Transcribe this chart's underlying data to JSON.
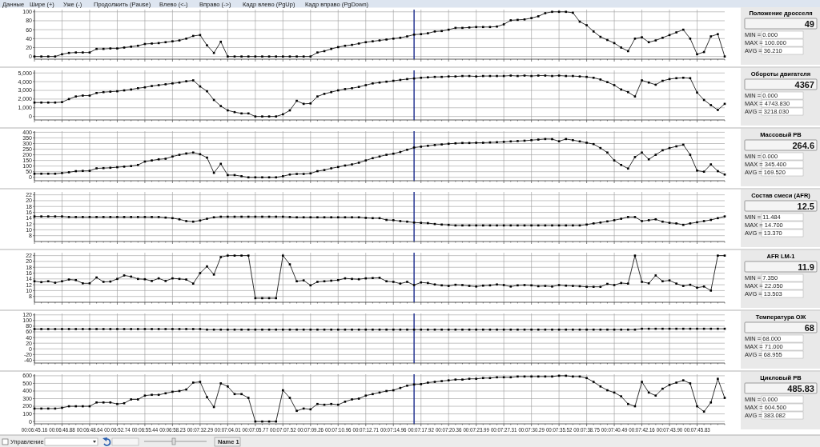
{
  "chart_data": [
    {
      "type": "line",
      "legend": "right",
      "marker": "square",
      "grid": true,
      "ylim": [
        -6,
        105
      ],
      "yticks": [
        0,
        20,
        40,
        60,
        80,
        100
      ],
      "categories": [
        null,
        null,
        null,
        null,
        null,
        null,
        null,
        null,
        null,
        null,
        null,
        null,
        null,
        null,
        null,
        null,
        null,
        null,
        null,
        null,
        null,
        null,
        null,
        null,
        null,
        null,
        null,
        null,
        null,
        null,
        null,
        null,
        null,
        null,
        null,
        null,
        null,
        null,
        null,
        null,
        null,
        null,
        null,
        null,
        null,
        null,
        null,
        null,
        null,
        null,
        null,
        null,
        null,
        null,
        null,
        null,
        null,
        null,
        null,
        null,
        null,
        null,
        null,
        null,
        null,
        null,
        null,
        null,
        null,
        null,
        null,
        null,
        null,
        null,
        null,
        null,
        null,
        null,
        null,
        null,
        null,
        null,
        null,
        null,
        null,
        null,
        null,
        null,
        null,
        null,
        null,
        null,
        null,
        null,
        null,
        null,
        null,
        null,
        null,
        null,
        null
      ],
      "series": [
        {
          "name": "Положение дросселя",
          "color": "#000000",
          "values": [
            0,
            0,
            0,
            0,
            5,
            8,
            9,
            9,
            9,
            17,
            17,
            18,
            18,
            20,
            22,
            24,
            28,
            29,
            30,
            32,
            34,
            36,
            40,
            46,
            48,
            25,
            8,
            33,
            0,
            0,
            0,
            0,
            0,
            0,
            0,
            0,
            0,
            0,
            0,
            0,
            0,
            9,
            12,
            17,
            21,
            24,
            26,
            29,
            32,
            34,
            36,
            38,
            40,
            42,
            45,
            49,
            50,
            52,
            56,
            57,
            60,
            64,
            64,
            65,
            66,
            66,
            66,
            67,
            72,
            81,
            82,
            83,
            86,
            90,
            97,
            100,
            100,
            100,
            98,
            78,
            70,
            56,
            44,
            37,
            30,
            20,
            12,
            40,
            43,
            32,
            36,
            42,
            48,
            54,
            60,
            40,
            5,
            10,
            45,
            50,
            0
          ]
        }
      ],
      "annotations": [
        "49",
        "MIN = 0.000",
        "MAX = 100.000",
        "AVG = 36.210",
        "Данные",
        "Шире (+)",
        "Уже (-)",
        "Продолжить (Pause)",
        "Влево (<-)",
        "Вправо (->)",
        "Кадр влево (PgUp)",
        "Кадр вправо (PgDown)"
      ]
    },
    {
      "type": "line",
      "legend": "right",
      "marker": "square",
      "grid": true,
      "ylim": [
        -400,
        5300
      ],
      "yticks": [
        0,
        {
          "value": 1000,
          "label": "1,000"
        },
        {
          "value": 2000,
          "label": "2,000"
        },
        {
          "value": 3000,
          "label": "3,000"
        },
        {
          "value": 4000,
          "label": "4,000"
        },
        {
          "value": 5000,
          "label": "5,000"
        }
      ],
      "categories": [
        null,
        null,
        null,
        null,
        null,
        null,
        null,
        null,
        null,
        null,
        null,
        null,
        null,
        null,
        null,
        null,
        null,
        null,
        null,
        null,
        null,
        null,
        null,
        null,
        null,
        null,
        null,
        null,
        null,
        null,
        null,
        null,
        null,
        null,
        null,
        null,
        null,
        null,
        null,
        null,
        null,
        null,
        null,
        null,
        null,
        null,
        null,
        null,
        null,
        null,
        null,
        null,
        null,
        null,
        null,
        null,
        null,
        null,
        null,
        null,
        null,
        null,
        null,
        null,
        null,
        null,
        null,
        null,
        null,
        null,
        null,
        null,
        null,
        null,
        null,
        null,
        null,
        null,
        null,
        null,
        null,
        null,
        null,
        null,
        null,
        null,
        null,
        null,
        null,
        null,
        null,
        null,
        null,
        null,
        null,
        null,
        null,
        null,
        null,
        null,
        null
      ],
      "series": [
        {
          "name": "Обороты двигателя",
          "color": "#000000",
          "values": [
            1600,
            1600,
            1600,
            1600,
            1650,
            2000,
            2300,
            2400,
            2400,
            2700,
            2800,
            2850,
            2900,
            3000,
            3100,
            3250,
            3350,
            3500,
            3600,
            3700,
            3800,
            3900,
            4050,
            4150,
            3450,
            2900,
            1900,
            1200,
            700,
            500,
            350,
            350,
            0,
            0,
            0,
            0,
            250,
            700,
            1800,
            1450,
            1500,
            2300,
            2600,
            2800,
            3000,
            3150,
            3250,
            3400,
            3600,
            3800,
            3900,
            4000,
            4100,
            4200,
            4300,
            4367,
            4450,
            4500,
            4550,
            4550,
            4600,
            4600,
            4650,
            4650,
            4600,
            4650,
            4650,
            4650,
            4650,
            4700,
            4650,
            4700,
            4650,
            4700,
            4700,
            4650,
            4700,
            4650,
            4650,
            4600,
            4550,
            4450,
            4250,
            3950,
            3600,
            3100,
            2800,
            2300,
            4150,
            3900,
            3650,
            4100,
            4300,
            4400,
            4450,
            4400,
            2750,
            1900,
            1300,
            750,
            1450
          ]
        }
      ],
      "annotations": [
        "4367",
        "MIN = 0.000",
        "MAX = 4743.830",
        "AVG = 3218.030"
      ]
    },
    {
      "type": "line",
      "legend": "right",
      "marker": "square",
      "grid": true,
      "ylim": [
        -30,
        410
      ],
      "yticks": [
        0,
        50,
        100,
        150,
        200,
        250,
        300,
        350,
        400
      ],
      "categories": [
        null,
        null,
        null,
        null,
        null,
        null,
        null,
        null,
        null,
        null,
        null,
        null,
        null,
        null,
        null,
        null,
        null,
        null,
        null,
        null,
        null,
        null,
        null,
        null,
        null,
        null,
        null,
        null,
        null,
        null,
        null,
        null,
        null,
        null,
        null,
        null,
        null,
        null,
        null,
        null,
        null,
        null,
        null,
        null,
        null,
        null,
        null,
        null,
        null,
        null,
        null,
        null,
        null,
        null,
        null,
        null,
        null,
        null,
        null,
        null,
        null,
        null,
        null,
        null,
        null,
        null,
        null,
        null,
        null,
        null,
        null,
        null,
        null,
        null,
        null,
        null,
        null,
        null,
        null,
        null,
        null,
        null,
        null,
        null,
        null,
        null,
        null,
        null,
        null,
        null,
        null,
        null,
        null,
        null,
        null,
        null,
        null,
        null,
        null,
        null,
        null
      ],
      "series": [
        {
          "name": "Массовый РВ",
          "color": "#000000",
          "values": [
            32,
            32,
            32,
            32,
            38,
            45,
            55,
            57,
            58,
            80,
            82,
            85,
            90,
            95,
            100,
            110,
            140,
            150,
            160,
            165,
            185,
            200,
            212,
            220,
            205,
            175,
            40,
            120,
            20,
            20,
            10,
            0,
            0,
            0,
            0,
            0,
            10,
            25,
            30,
            30,
            35,
            55,
            65,
            80,
            92,
            105,
            115,
            130,
            150,
            170,
            185,
            200,
            210,
            225,
            245,
            264.6,
            272,
            280,
            287,
            292,
            298,
            302,
            305,
            305,
            307,
            307,
            310,
            312,
            315,
            319,
            322,
            325,
            330,
            335,
            340,
            339,
            320,
            340,
            330,
            319,
            307,
            295,
            260,
            220,
            150,
            110,
            78,
            180,
            220,
            160,
            200,
            240,
            260,
            275,
            290,
            200,
            60,
            50,
            115,
            55,
            25
          ]
        }
      ],
      "annotations": [
        "264.6",
        "MIN = 0.000",
        "MAX = 345.400",
        "AVG = 169.520"
      ]
    },
    {
      "type": "line",
      "legend": "right",
      "marker": "square",
      "grid": true,
      "ylim": [
        6,
        23
      ],
      "yticks": [
        8,
        10,
        12,
        14,
        16,
        18,
        20,
        22
      ],
      "categories": [
        null,
        null,
        null,
        null,
        null,
        null,
        null,
        null,
        null,
        null,
        null,
        null,
        null,
        null,
        null,
        null,
        null,
        null,
        null,
        null,
        null,
        null,
        null,
        null,
        null,
        null,
        null,
        null,
        null,
        null,
        null,
        null,
        null,
        null,
        null,
        null,
        null,
        null,
        null,
        null,
        null,
        null,
        null,
        null,
        null,
        null,
        null,
        null,
        null,
        null,
        null,
        null,
        null,
        null,
        null,
        null,
        null,
        null,
        null,
        null,
        null,
        null,
        null,
        null,
        null,
        null,
        null,
        null,
        null,
        null,
        null,
        null,
        null,
        null,
        null,
        null,
        null,
        null,
        null,
        null,
        null,
        null,
        null,
        null,
        null,
        null,
        null,
        null,
        null,
        null,
        null,
        null,
        null,
        null,
        null,
        null,
        null,
        null,
        null,
        null,
        null
      ],
      "series": [
        {
          "name": "Состав смеси (AFR)",
          "color": "#000000",
          "values": [
            14.6,
            14.6,
            14.6,
            14.6,
            14.6,
            14.4,
            14.4,
            14.4,
            14.4,
            14.4,
            14.4,
            14.4,
            14.4,
            14.4,
            14.4,
            14.4,
            14.4,
            14.4,
            14.4,
            14.2,
            14.0,
            13.6,
            13.0,
            12.8,
            13.2,
            13.8,
            14.3,
            14.5,
            14.5,
            14.5,
            14.5,
            14.5,
            14.5,
            14.5,
            14.5,
            14.5,
            14.5,
            14.4,
            14.3,
            14.3,
            14.3,
            14.3,
            14.3,
            14.3,
            14.3,
            14.3,
            14.3,
            14.3,
            14.1,
            14.0,
            14.0,
            13.4,
            13.3,
            13.0,
            12.8,
            12.5,
            12.4,
            12.3,
            12.0,
            11.8,
            11.7,
            11.5,
            11.5,
            11.5,
            11.5,
            11.5,
            11.5,
            11.5,
            11.5,
            11.5,
            11.5,
            11.5,
            11.5,
            11.5,
            11.5,
            11.5,
            11.5,
            11.5,
            11.5,
            11.5,
            11.8,
            12.2,
            12.5,
            12.9,
            13.3,
            13.8,
            14.4,
            14.4,
            13.0,
            13.3,
            13.6,
            12.8,
            12.4,
            12.2,
            11.7,
            12.2,
            12.6,
            13.0,
            13.4,
            14.0,
            14.6
          ]
        }
      ],
      "annotations": [
        "12.5",
        "MIN = 11.484",
        "MAX = 14.700",
        "AVG = 13.370"
      ]
    },
    {
      "type": "line",
      "legend": "right",
      "marker": "square",
      "grid": true,
      "ylim": [
        6,
        23
      ],
      "yticks": [
        8,
        10,
        12,
        14,
        16,
        18,
        20,
        22
      ],
      "categories": [
        null,
        null,
        null,
        null,
        null,
        null,
        null,
        null,
        null,
        null,
        null,
        null,
        null,
        null,
        null,
        null,
        null,
        null,
        null,
        null,
        null,
        null,
        null,
        null,
        null,
        null,
        null,
        null,
        null,
        null,
        null,
        null,
        null,
        null,
        null,
        null,
        null,
        null,
        null,
        null,
        null,
        null,
        null,
        null,
        null,
        null,
        null,
        null,
        null,
        null,
        null,
        null,
        null,
        null,
        null,
        null,
        null,
        null,
        null,
        null,
        null,
        null,
        null,
        null,
        null,
        null,
        null,
        null,
        null,
        null,
        null,
        null,
        null,
        null,
        null,
        null,
        null,
        null,
        null,
        null,
        null,
        null,
        null,
        null,
        null,
        null,
        null,
        null,
        null,
        null,
        null,
        null,
        null,
        null,
        null,
        null,
        null,
        null,
        null,
        null,
        null
      ],
      "series": [
        {
          "name": "AFR LM-1",
          "color": "#000000",
          "values": [
            13.2,
            12.9,
            13.2,
            12.7,
            13.2,
            13.8,
            13.6,
            12.5,
            12.5,
            14.5,
            13.0,
            13.1,
            14.0,
            15.2,
            14.8,
            14.0,
            13.9,
            13.3,
            14.2,
            13.3,
            14.2,
            14.0,
            13.8,
            12.4,
            16.0,
            18.3,
            15.5,
            21.5,
            22,
            22,
            22,
            22,
            7.4,
            7.4,
            7.4,
            7.4,
            22,
            19.0,
            13.2,
            13.5,
            11.8,
            13.0,
            13.2,
            13.4,
            13.6,
            14.2,
            14.0,
            13.9,
            14.2,
            14.3,
            14.4,
            13.2,
            13.0,
            12.4,
            13.0,
            11.9,
            12.8,
            12.6,
            12.1,
            11.8,
            11.6,
            12.0,
            11.9,
            11.6,
            11.4,
            11.7,
            11.8,
            12.1,
            11.9,
            11.4,
            11.8,
            11.9,
            11.8,
            11.5,
            11.6,
            11.4,
            11.9,
            11.7,
            11.6,
            11.5,
            11.3,
            11.3,
            11.3,
            12.3,
            11.9,
            12.6,
            12.4,
            22,
            13.0,
            12.5,
            15.2,
            13.2,
            13.5,
            12.4,
            11.6,
            12.0,
            11.0,
            11.4,
            10.0,
            22,
            22
          ]
        }
      ],
      "annotations": [
        "11.9",
        "MIN = 7.350",
        "MAX = 22.050",
        "AVG = 13.503"
      ]
    },
    {
      "type": "line",
      "legend": "right",
      "marker": "square",
      "grid": true,
      "ylim": [
        -50,
        125
      ],
      "yticks": [
        -40,
        -20,
        0,
        20,
        40,
        60,
        80,
        100,
        120
      ],
      "categories": [
        null,
        null,
        null,
        null,
        null,
        null,
        null,
        null,
        null,
        null,
        null,
        null,
        null,
        null,
        null,
        null,
        null,
        null,
        null,
        null,
        null,
        null,
        null,
        null,
        null,
        null,
        null,
        null,
        null,
        null,
        null,
        null,
        null,
        null,
        null,
        null,
        null,
        null,
        null,
        null,
        null,
        null,
        null,
        null,
        null,
        null,
        null,
        null,
        null,
        null,
        null,
        null,
        null,
        null,
        null,
        null,
        null,
        null,
        null,
        null,
        null,
        null,
        null,
        null,
        null,
        null,
        null,
        null,
        null,
        null,
        null,
        null,
        null,
        null,
        null,
        null,
        null,
        null,
        null,
        null,
        null,
        null,
        null,
        null,
        null,
        null,
        null,
        null,
        null,
        null,
        null,
        null,
        null,
        null,
        null,
        null,
        null,
        null,
        null,
        null,
        null
      ],
      "series": [
        {
          "name": "Температура ОЖ",
          "color": "#000000",
          "values": [
            70,
            70,
            70,
            70,
            70,
            70,
            70,
            70,
            70,
            70,
            70,
            70,
            70,
            70,
            70,
            70,
            70,
            70,
            70,
            70,
            70,
            70,
            70,
            70,
            70,
            68,
            68,
            68,
            68,
            68,
            68,
            68,
            68,
            68,
            68,
            68,
            68,
            68,
            68,
            68,
            68,
            68,
            68,
            68,
            68,
            68,
            68,
            68,
            68,
            68,
            68,
            68,
            68,
            68,
            68,
            68,
            68,
            68,
            68,
            68,
            68,
            68,
            68,
            68,
            68,
            68,
            68,
            68,
            68,
            68,
            68,
            68,
            68,
            68,
            68,
            68,
            68,
            68,
            68,
            68,
            68,
            68,
            68,
            68,
            68,
            68,
            68,
            68,
            71,
            71,
            71,
            71,
            71,
            71,
            71,
            71,
            71,
            71,
            71,
            71,
            71
          ]
        }
      ],
      "annotations": [
        "68",
        "MIN = 68.000",
        "MAX = 71.000",
        "AVG = 68.955"
      ]
    },
    {
      "type": "line",
      "legend": "right",
      "marker": "square",
      "grid": true,
      "ylim": [
        -30,
        620
      ],
      "yticks": [
        0,
        100,
        200,
        300,
        400,
        500,
        600
      ],
      "categories": [
        "00:06:45.16",
        null,
        null,
        null,
        "00:06:46.88",
        null,
        null,
        null,
        "00:06:48.64",
        null,
        null,
        null,
        "00:06:52.74",
        null,
        null,
        null,
        "00:06:55.44",
        null,
        null,
        null,
        "00:06:58.23",
        null,
        null,
        null,
        "00:07:32.29",
        null,
        null,
        null,
        "00:07:04.01",
        null,
        null,
        null,
        "00:07:05.77",
        null,
        null,
        null,
        "00:07:07.52",
        null,
        null,
        null,
        "00:07:09.26",
        null,
        null,
        null,
        "00:07:10.96",
        null,
        null,
        null,
        "00:07:12.71",
        null,
        null,
        null,
        "00:07:14.96",
        null,
        null,
        null,
        "00:07:17.92",
        null,
        null,
        null,
        "00:07:20.36",
        null,
        null,
        null,
        "00:07:23.99",
        null,
        null,
        null,
        "00:07:27.31",
        null,
        null,
        null,
        "00:07:30.29",
        null,
        null,
        null,
        "00:07:35.52",
        null,
        null,
        null,
        "00:07:38.75",
        null,
        null,
        null,
        "00:07:40.49",
        null,
        null,
        null,
        "00:07:42.16",
        null,
        null,
        null,
        "00:07:43.90",
        null,
        null,
        null,
        "00:07:45.83",
        null,
        null,
        null,
        null
      ],
      "series": [
        {
          "name": "Цикловый РВ",
          "color": "#000000",
          "values": [
            170,
            170,
            170,
            170,
            180,
            200,
            200,
            200,
            200,
            250,
            250,
            250,
            230,
            240,
            290,
            290,
            340,
            350,
            350,
            370,
            390,
            400,
            420,
            510,
            520,
            320,
            190,
            500,
            460,
            360,
            360,
            310,
            0,
            0,
            0,
            0,
            410,
            310,
            140,
            170,
            160,
            230,
            220,
            230,
            220,
            260,
            290,
            300,
            340,
            360,
            380,
            400,
            410,
            440,
            470,
            485.83,
            490,
            510,
            520,
            530,
            540,
            550,
            550,
            560,
            560,
            570,
            570,
            580,
            580,
            580,
            590,
            590,
            590,
            590,
            590,
            590,
            600,
            600,
            590,
            590,
            570,
            520,
            460,
            410,
            380,
            330,
            230,
            200,
            520,
            380,
            340,
            430,
            480,
            510,
            540,
            500,
            200,
            130,
            250,
            560,
            310
          ]
        }
      ],
      "annotations": [
        "485.83",
        "MIN = 0.000",
        "MAX = 604.500",
        "AVG = 383.082",
        "Управление",
        "Name 1"
      ]
    }
  ]
}
